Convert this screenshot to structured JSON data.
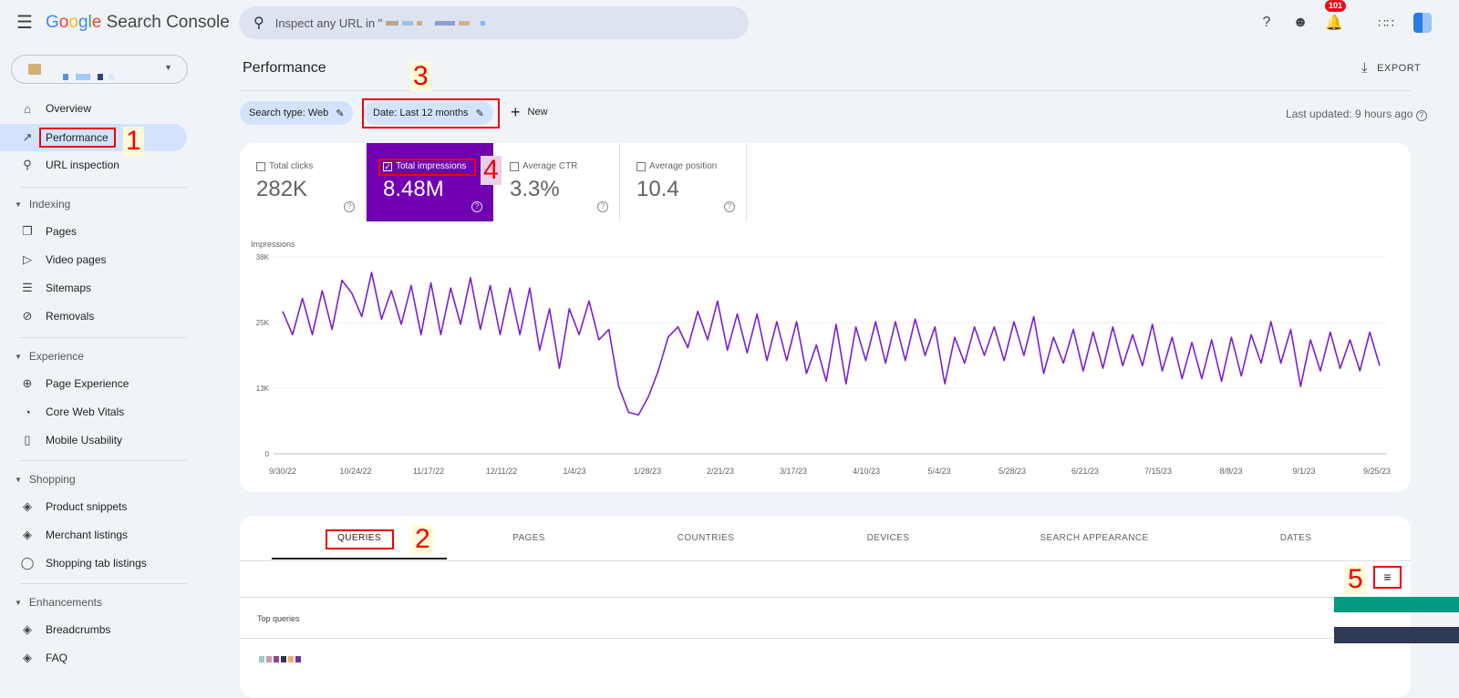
{
  "header": {
    "logo_google": "Google",
    "logo_product": "Search Console",
    "search_placeholder": "Inspect any URL in \"",
    "notification_count": "101"
  },
  "sidebar": {
    "items": [
      {
        "label": "Overview",
        "icon": "home-icon"
      },
      {
        "label": "Performance",
        "icon": "trending-up-icon"
      },
      {
        "label": "URL inspection",
        "icon": "search-icon"
      }
    ],
    "sections": [
      {
        "label": "Indexing",
        "items": [
          "Pages",
          "Video pages",
          "Sitemaps",
          "Removals"
        ]
      },
      {
        "label": "Experience",
        "items": [
          "Page Experience",
          "Core Web Vitals",
          "Mobile Usability"
        ]
      },
      {
        "label": "Shopping",
        "items": [
          "Product snippets",
          "Merchant listings",
          "Shopping tab listings"
        ]
      },
      {
        "label": "Enhancements",
        "items": [
          "Breadcrumbs",
          "FAQ"
        ]
      }
    ]
  },
  "page": {
    "title": "Performance",
    "export_label": "EXPORT",
    "last_updated": "Last updated: 9 hours ago"
  },
  "filters": {
    "search_type": "Search type: Web",
    "date": "Date: Last 12 months",
    "new_label": "New"
  },
  "metrics": [
    {
      "label": "Total clicks",
      "value": "282K",
      "checked": false
    },
    {
      "label": "Total impressions",
      "value": "8.48M",
      "checked": true
    },
    {
      "label": "Average CTR",
      "value": "3.3%",
      "checked": false
    },
    {
      "label": "Average position",
      "value": "10.4",
      "checked": false
    }
  ],
  "colors": {
    "accent": "#7000b0",
    "line": "#7b1fd1",
    "active_nav": "#d3e3fd",
    "annotation": "#e00000"
  },
  "chart_data": {
    "type": "line",
    "ylabel": "Impressions",
    "yticks": [
      "0",
      "13K",
      "25K",
      "38K"
    ],
    "ytick_values": [
      0,
      12670,
      25330,
      38000
    ],
    "ylim": [
      0,
      38000
    ],
    "xticks": [
      "9/30/22",
      "10/24/22",
      "11/17/22",
      "12/11/22",
      "1/4/23",
      "1/28/23",
      "2/21/23",
      "3/17/23",
      "4/10/23",
      "5/4/23",
      "5/28/23",
      "6/21/23",
      "7/15/23",
      "8/8/23",
      "9/1/23",
      "9/25/23"
    ],
    "x_range": [
      "9/30/22",
      "9/28/23"
    ],
    "series": [
      {
        "name": "Impressions",
        "values": [
          27.5,
          23,
          30,
          23,
          31.5,
          24,
          33.5,
          31,
          26.5,
          35,
          26,
          31.5,
          25,
          32.5,
          23,
          33,
          23,
          32,
          25,
          34,
          24,
          32.5,
          23,
          32,
          23,
          32,
          20,
          28,
          16.5,
          28,
          23,
          29.5,
          22,
          24,
          13,
          8,
          7.5,
          11,
          16,
          22.5,
          24.5,
          20.5,
          27.5,
          22,
          29.5,
          20,
          27,
          19.5,
          27,
          18,
          25.5,
          18,
          25.5,
          15.5,
          21,
          14,
          25,
          13.5,
          24.5,
          18,
          25.5,
          17.5,
          25.5,
          18,
          26,
          19,
          24.5,
          13.5,
          22.5,
          17.5,
          24.5,
          19,
          24.5,
          18,
          25.5,
          19,
          26.5,
          15.5,
          22.5,
          17.5,
          24,
          16,
          23.5,
          16.5,
          24.5,
          17,
          23,
          17,
          25,
          16,
          22.5,
          14.5,
          21.5,
          14.5,
          22,
          14,
          22.5,
          15,
          23,
          17.5,
          25.5,
          17.5,
          24,
          13,
          22,
          16,
          23.5,
          16.5,
          22,
          16,
          23.5,
          17
        ]
      }
    ],
    "value_unit": "thousands"
  },
  "tabs": [
    "QUERIES",
    "PAGES",
    "COUNTRIES",
    "DEVICES",
    "SEARCH APPEARANCE",
    "DATES"
  ],
  "table": {
    "header": "Top queries"
  },
  "annotations": [
    "1",
    "2",
    "3",
    "4",
    "5"
  ]
}
